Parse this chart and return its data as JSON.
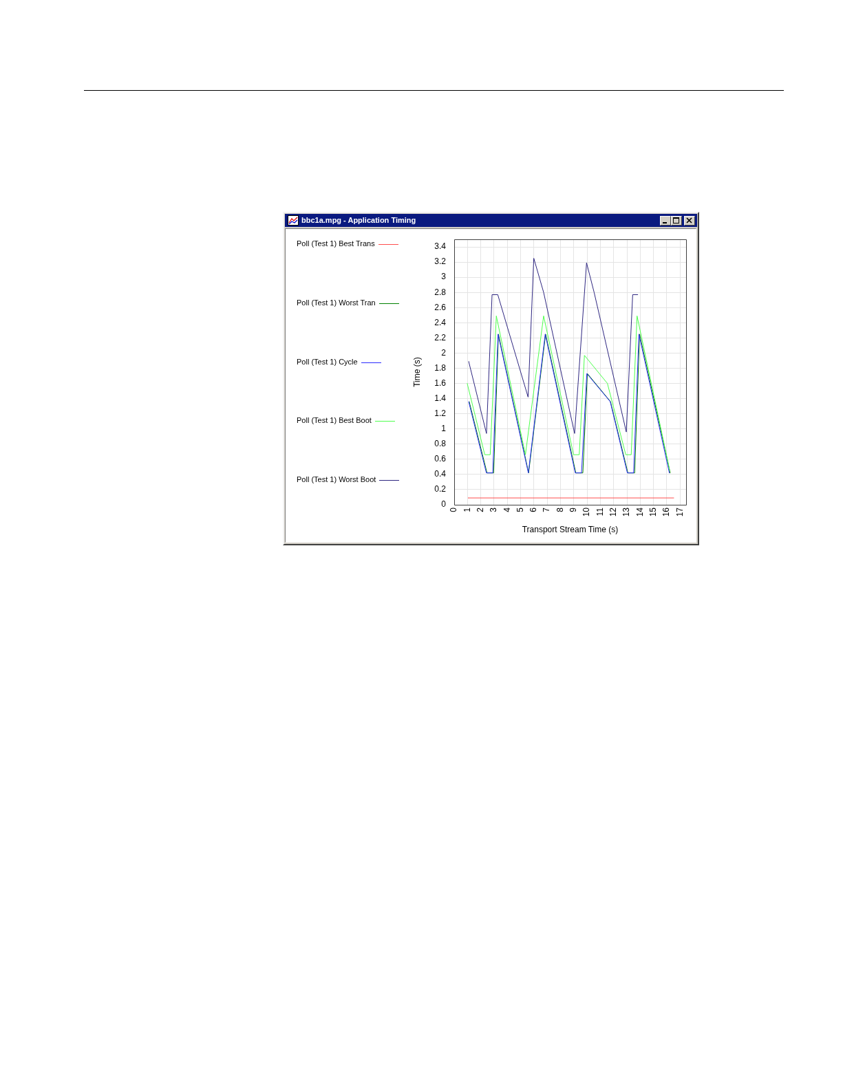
{
  "chart_data": {
    "type": "line",
    "title": "bbc1a.mpg - Application Timing",
    "xlabel": "Transport Stream Time (s)",
    "ylabel": "Time (s)",
    "xlim": [
      0,
      17.45
    ],
    "xticks": [
      0,
      1,
      2,
      3,
      4,
      5,
      6,
      7,
      8,
      9,
      10,
      11,
      12,
      13,
      14,
      15,
      16,
      17
    ],
    "ylim": [
      0,
      3.5
    ],
    "yticks": [
      0,
      0.2,
      0.4,
      0.6,
      0.8,
      1,
      1.2,
      1.4,
      1.6,
      1.8,
      2,
      2.2,
      2.4,
      2.6,
      2.8,
      3,
      3.2,
      3.4
    ],
    "grid": true,
    "legend": "left",
    "marker": "none",
    "line_style": "solid",
    "series": [
      {
        "name": "Poll (Test 1) Best Trans",
        "color": "#ff4d4d",
        "x": [
          1.04,
          16.52
        ],
        "values": [
          0.09,
          0.09
        ]
      },
      {
        "name": "Poll (Test 1) Worst Tran",
        "color": "#008000",
        "x": [
          1.13,
          2.47,
          2.97,
          3.33,
          5.6,
          6.88,
          9.15,
          9.68,
          10.02,
          11.76,
          13.07,
          13.58,
          13.95,
          16.25
        ],
        "values": [
          1.36,
          0.42,
          0.42,
          2.25,
          0.42,
          2.25,
          0.42,
          0.42,
          1.73,
          1.36,
          0.42,
          0.42,
          2.25,
          0.42
        ]
      },
      {
        "name": "Poll (Test 1) Cycle",
        "color": "#2b2bff",
        "x": [
          1.09,
          2.42,
          2.9,
          3.3,
          5.58,
          6.85,
          9.11,
          9.58,
          9.98,
          11.74,
          13.03,
          13.5,
          13.9,
          16.19
        ],
        "values": [
          1.36,
          0.42,
          0.42,
          2.25,
          0.42,
          2.25,
          0.42,
          0.42,
          1.73,
          1.36,
          0.42,
          0.42,
          2.25,
          0.42
        ]
      },
      {
        "name": "Poll (Test 1) Best Boot",
        "color": "#4dff4d",
        "x": [
          0.98,
          2.3,
          2.71,
          3.17,
          5.36,
          6.73,
          8.98,
          9.41,
          9.8,
          11.53,
          12.91,
          13.32,
          13.76,
          16.22
        ],
        "values": [
          1.6,
          0.66,
          0.66,
          2.49,
          0.66,
          2.49,
          0.66,
          0.66,
          1.97,
          1.6,
          0.66,
          0.66,
          2.49,
          0.45
        ]
      },
      {
        "name": "Poll (Test 1) Worst Boot",
        "color": "#2e2680",
        "x": [
          1.09,
          2.43,
          2.85,
          3.28,
          5.56,
          5.99,
          6.73,
          9.06,
          9.96,
          10.53,
          12.95,
          13.43,
          13.81
        ],
        "values": [
          1.89,
          0.94,
          2.77,
          2.77,
          1.42,
          3.25,
          2.8,
          0.94,
          3.19,
          2.8,
          0.96,
          2.77,
          2.77
        ]
      }
    ]
  }
}
